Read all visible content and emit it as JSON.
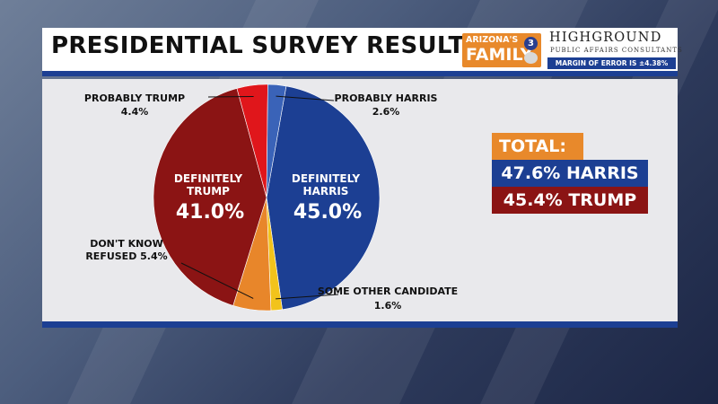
{
  "header": {
    "title": "PRESIDENTIAL SURVEY RESULTS",
    "logo_az_line1": "ARIZONA'S",
    "logo_az_line2": "FAMILY",
    "logo_az_number": "3",
    "logo_hg_name": "HIGHGROUND",
    "logo_hg_sub": "PUBLIC AFFAIRS CONSULTANTS",
    "margin_of_error": "MARGIN OF ERROR IS ±4.38%"
  },
  "totals": {
    "title": "TOTAL:",
    "harris": "47.6% HARRIS",
    "trump": "45.4% TRUMP"
  },
  "chart_data": {
    "type": "pie",
    "start_angle_deg": 10,
    "slices": [
      {
        "key": "definitely_harris",
        "label_lines": [
          "DEFINITELY",
          "HARRIS"
        ],
        "value_label": "45.0%",
        "value": 45.0,
        "color": "#1c3f93"
      },
      {
        "key": "some_other",
        "label_lines": [
          "SOME OTHER CANDIDATE"
        ],
        "value_label": "1.6%",
        "value": 1.6,
        "color": "#f2c31b"
      },
      {
        "key": "dont_know",
        "label_lines": [
          "DON'T KNOW",
          "REFUSED 5.4%"
        ],
        "value_label": "",
        "value": 5.4,
        "color": "#e8862a"
      },
      {
        "key": "definitely_trump",
        "label_lines": [
          "DEFINITELY",
          "TRUMP"
        ],
        "value_label": "41.0%",
        "value": 41.0,
        "color": "#8b1414"
      },
      {
        "key": "probably_trump",
        "label_lines": [
          "PROBABLY TRUMP"
        ],
        "value_label": "4.4%",
        "value": 4.4,
        "color": "#e0161b"
      },
      {
        "key": "probably_harris",
        "label_lines": [
          "PROBABLY HARRIS"
        ],
        "value_label": "2.6%",
        "value": 2.6,
        "color": "#3a63b8"
      }
    ]
  }
}
